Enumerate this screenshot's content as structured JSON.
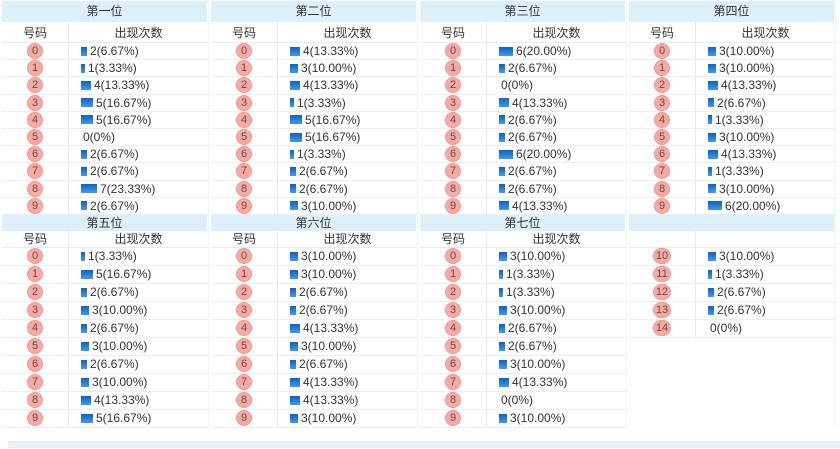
{
  "ui": {
    "column_headers": [
      "号码",
      "出现次数"
    ],
    "colors": {
      "section_header_band": "#ddeffb",
      "bar_blue": "#1472d2",
      "badge_pink": "#f9a8a2",
      "footer_band": "#e3f1fc",
      "grid_line": "#e3ecf4"
    }
  },
  "chart_data": [
    {
      "type": "bar",
      "title": "第一位",
      "show_column_headers": true,
      "categories": [
        "0",
        "1",
        "2",
        "3",
        "4",
        "5",
        "6",
        "7",
        "8",
        "9"
      ],
      "values": [
        2,
        1,
        4,
        5,
        5,
        0,
        2,
        2,
        7,
        2
      ],
      "labels": [
        "2(6.67%)",
        "1(3.33%)",
        "4(13.33%)",
        "5(16.67%)",
        "5(16.67%)",
        "0(0%)",
        "2(6.67%)",
        "2(6.67%)",
        "7(23.33%)",
        "2(6.67%)"
      ]
    },
    {
      "type": "bar",
      "title": "第二位",
      "show_column_headers": true,
      "categories": [
        "0",
        "1",
        "2",
        "3",
        "4",
        "5",
        "6",
        "7",
        "8",
        "9"
      ],
      "values": [
        4,
        3,
        4,
        1,
        5,
        5,
        1,
        2,
        2,
        3
      ],
      "labels": [
        "4(13.33%)",
        "3(10.00%)",
        "4(13.33%)",
        "1(3.33%)",
        "5(16.67%)",
        "5(16.67%)",
        "1(3.33%)",
        "2(6.67%)",
        "2(6.67%)",
        "3(10.00%)"
      ]
    },
    {
      "type": "bar",
      "title": "第三位",
      "show_column_headers": true,
      "categories": [
        "0",
        "1",
        "2",
        "3",
        "4",
        "5",
        "6",
        "7",
        "8",
        "9"
      ],
      "values": [
        6,
        2,
        0,
        4,
        2,
        2,
        6,
        2,
        2,
        4
      ],
      "labels": [
        "6(20.00%)",
        "2(6.67%)",
        "0(0%)",
        "4(13.33%)",
        "2(6.67%)",
        "2(6.67%)",
        "6(20.00%)",
        "2(6.67%)",
        "2(6.67%)",
        "4(13.33%)"
      ]
    },
    {
      "type": "bar",
      "title": "第四位",
      "show_column_headers": true,
      "categories": [
        "0",
        "1",
        "2",
        "3",
        "4",
        "5",
        "6",
        "7",
        "8",
        "9"
      ],
      "values": [
        3,
        3,
        4,
        2,
        1,
        3,
        4,
        1,
        3,
        6
      ],
      "labels": [
        "3(10.00%)",
        "3(10.00%)",
        "4(13.33%)",
        "2(6.67%)",
        "1(3.33%)",
        "3(10.00%)",
        "4(13.33%)",
        "1(3.33%)",
        "3(10.00%)",
        "6(20.00%)"
      ]
    },
    {
      "type": "bar",
      "title": "第五位",
      "show_column_headers": true,
      "categories": [
        "0",
        "1",
        "2",
        "3",
        "4",
        "5",
        "6",
        "7",
        "8",
        "9"
      ],
      "values": [
        1,
        5,
        2,
        3,
        2,
        3,
        2,
        3,
        4,
        5
      ],
      "labels": [
        "1(3.33%)",
        "5(16.67%)",
        "2(6.67%)",
        "3(10.00%)",
        "2(6.67%)",
        "3(10.00%)",
        "2(6.67%)",
        "3(10.00%)",
        "4(13.33%)",
        "5(16.67%)"
      ]
    },
    {
      "type": "bar",
      "title": "第六位",
      "show_column_headers": true,
      "categories": [
        "0",
        "1",
        "2",
        "3",
        "4",
        "5",
        "6",
        "7",
        "8",
        "9"
      ],
      "values": [
        3,
        3,
        2,
        2,
        4,
        3,
        2,
        4,
        4,
        3
      ],
      "labels": [
        "3(10.00%)",
        "3(10.00%)",
        "2(6.67%)",
        "2(6.67%)",
        "4(13.33%)",
        "3(10.00%)",
        "2(6.67%)",
        "4(13.33%)",
        "4(13.33%)",
        "3(10.00%)"
      ]
    },
    {
      "type": "bar",
      "title": "第七位",
      "show_column_headers": true,
      "categories": [
        "0",
        "1",
        "2",
        "3",
        "4",
        "5",
        "6",
        "7",
        "8",
        "9"
      ],
      "values": [
        3,
        1,
        1,
        3,
        2,
        2,
        3,
        4,
        0,
        3
      ],
      "labels": [
        "3(10.00%)",
        "1(3.33%)",
        "1(3.33%)",
        "3(10.00%)",
        "2(6.67%)",
        "2(6.67%)",
        "3(10.00%)",
        "4(13.33%)",
        "0(0%)",
        "3(10.00%)"
      ]
    },
    {
      "type": "bar",
      "title": "",
      "show_column_headers": false,
      "categories": [
        "10",
        "11",
        "12",
        "13",
        "14"
      ],
      "values": [
        3,
        1,
        2,
        2,
        0
      ],
      "labels": [
        "3(10.00%)",
        "1(3.33%)",
        "2(6.67%)",
        "2(6.67%)",
        "0(0%)"
      ]
    }
  ]
}
